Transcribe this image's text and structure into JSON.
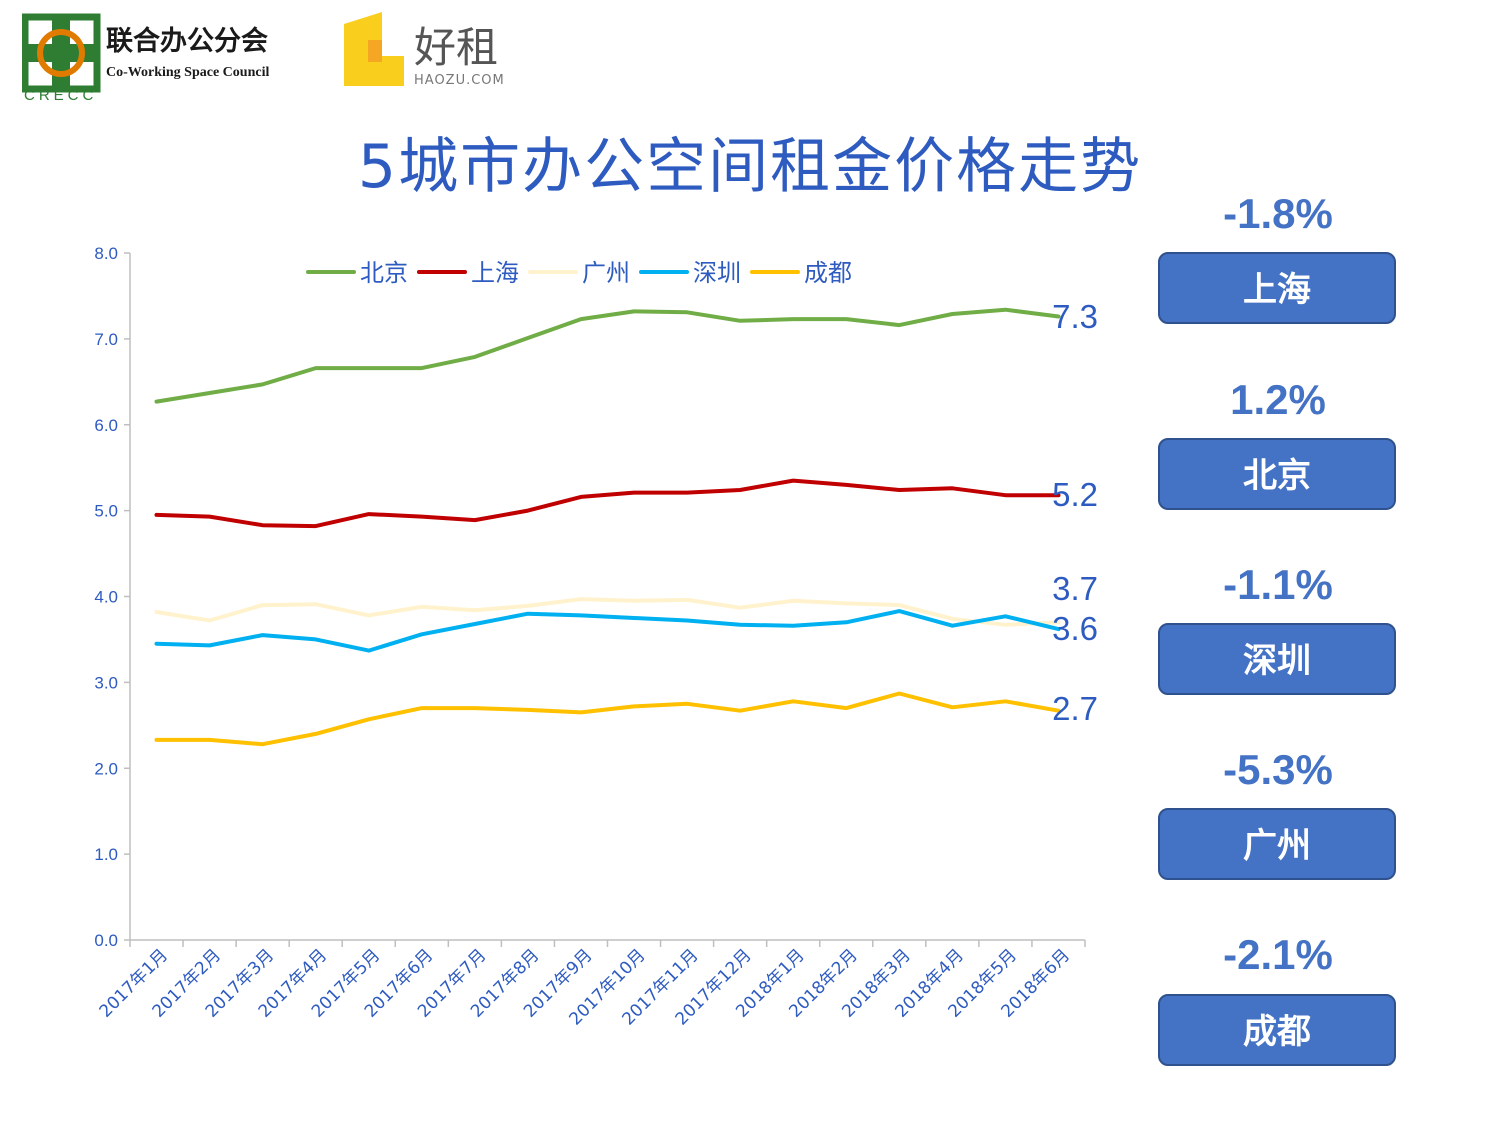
{
  "logos": {
    "crecc_name": "联合办公分会",
    "crecc_english": "Co-Working Space Council",
    "crecc_abbr": "CRECC",
    "haozu_name": "好租",
    "haozu_domain": "HAOZU.COM"
  },
  "title": "5城市办公空间租金价格走势",
  "panel": [
    {
      "percent": "-1.8%",
      "city": "上海"
    },
    {
      "percent": "1.2%",
      "city": "北京"
    },
    {
      "percent": "-1.1%",
      "city": "深圳"
    },
    {
      "percent": "-5.3%",
      "city": "广州"
    },
    {
      "percent": "-2.1%",
      "city": "成都"
    }
  ],
  "chart_data": {
    "type": "line",
    "title": "",
    "xlabel": "",
    "ylabel": "",
    "ylim": [
      0,
      8
    ],
    "yticks": [
      "0.0",
      "1.0",
      "2.0",
      "3.0",
      "4.0",
      "5.0",
      "6.0",
      "7.0",
      "8.0"
    ],
    "grid": false,
    "legend_position": "top",
    "categories": [
      "2017年1月",
      "2017年2月",
      "2017年3月",
      "2017年4月",
      "2017年5月",
      "2017年6月",
      "2017年7月",
      "2017年8月",
      "2017年9月",
      "2017年10月",
      "2017年11月",
      "2017年12月",
      "2018年1月",
      "2018年2月",
      "2018年3月",
      "2018年4月",
      "2018年5月",
      "2018年6月"
    ],
    "series": [
      {
        "name": "北京",
        "color": "#70AD47",
        "end_label": "7.3",
        "values": [
          6.27,
          6.37,
          6.47,
          6.66,
          6.66,
          6.66,
          6.79,
          7.01,
          7.23,
          7.32,
          7.31,
          7.21,
          7.23,
          7.23,
          7.16,
          7.29,
          7.34,
          7.26
        ]
      },
      {
        "name": "上海",
        "color": "#C00000",
        "end_label": "5.2",
        "values": [
          4.95,
          4.93,
          4.83,
          4.82,
          4.96,
          4.93,
          4.89,
          5.0,
          5.16,
          5.21,
          5.21,
          5.24,
          5.35,
          5.3,
          5.24,
          5.26,
          5.18,
          5.18
        ]
      },
      {
        "name": "广州",
        "color": "#FFF2CC",
        "end_label": "3.7",
        "values": [
          3.82,
          3.72,
          3.9,
          3.91,
          3.78,
          3.88,
          3.84,
          3.89,
          3.97,
          3.95,
          3.96,
          3.87,
          3.95,
          3.92,
          3.9,
          3.74,
          3.67,
          3.7
        ]
      },
      {
        "name": "深圳",
        "color": "#00B0F0",
        "end_label": "3.6",
        "values": [
          3.45,
          3.43,
          3.55,
          3.5,
          3.37,
          3.56,
          3.68,
          3.8,
          3.78,
          3.75,
          3.72,
          3.67,
          3.66,
          3.7,
          3.83,
          3.66,
          3.77,
          3.62
        ]
      },
      {
        "name": "成都",
        "color": "#FFC000",
        "end_label": "2.7",
        "values": [
          2.33,
          2.33,
          2.28,
          2.4,
          2.57,
          2.7,
          2.7,
          2.68,
          2.65,
          2.72,
          2.75,
          2.67,
          2.78,
          2.7,
          2.87,
          2.71,
          2.78,
          2.67
        ]
      }
    ]
  }
}
